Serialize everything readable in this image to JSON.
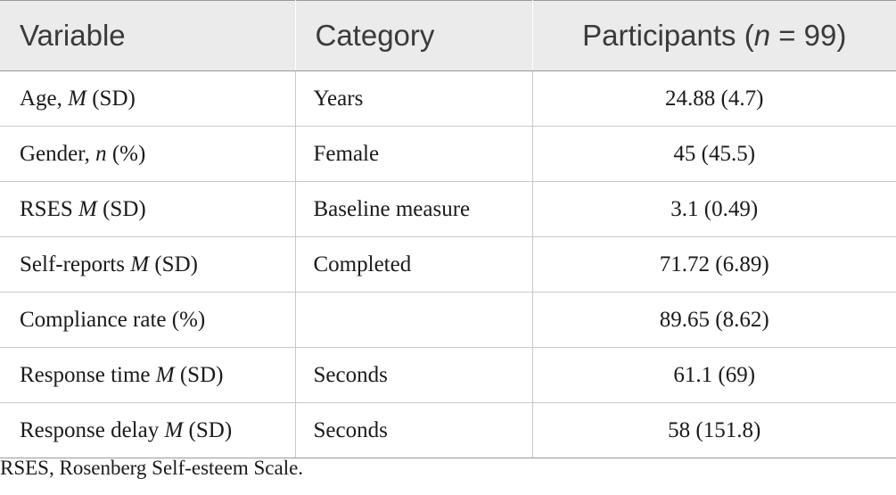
{
  "table": {
    "headers": {
      "variable": "Variable",
      "category": "Category",
      "participants_prefix": "Participants (",
      "participants_n": "n",
      "participants_suffix": " = 99)"
    },
    "rows": [
      {
        "var_main": "Age, ",
        "var_stat": "M",
        "var_tail": " (SD)",
        "category": "Years",
        "value": "24.88 (4.7)"
      },
      {
        "var_main": "Gender, ",
        "var_stat": "n",
        "var_tail": " (%)",
        "category": "Female",
        "value": "45 (45.5)"
      },
      {
        "var_main": "RSES ",
        "var_stat": "M",
        "var_tail": " (SD)",
        "category": "Baseline measure",
        "value": "3.1 (0.49)"
      },
      {
        "var_main": "Self-reports ",
        "var_stat": "M",
        "var_tail": " (SD)",
        "category": "Completed",
        "value": "71.72 (6.89)"
      },
      {
        "var_main": "Compliance rate (%)",
        "var_stat": "",
        "var_tail": "",
        "category": "",
        "value": "89.65 (8.62)"
      },
      {
        "var_main": "Response time ",
        "var_stat": "M",
        "var_tail": " (SD)",
        "category": "Seconds",
        "value": "61.1 (69)"
      },
      {
        "var_main": "Response delay ",
        "var_stat": "M",
        "var_tail": " (SD)",
        "category": "Seconds",
        "value": "58 (151.8)"
      }
    ]
  },
  "footnote": "RSES, Rosenberg Self-esteem Scale."
}
